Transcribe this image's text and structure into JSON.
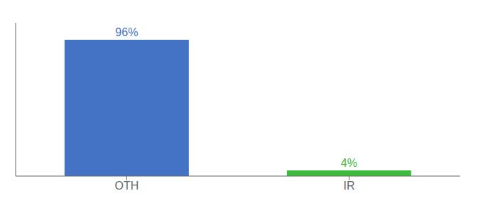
{
  "chart_data": {
    "type": "bar",
    "categories": [
      "OTH",
      "IR"
    ],
    "values": [
      96,
      4
    ],
    "value_labels": [
      "96%",
      "4%"
    ],
    "colors": [
      "#4472c4",
      "#3dbb3d"
    ],
    "ylim": [
      0,
      108
    ],
    "data_labels": true,
    "tick_labels": "x",
    "grid": false
  }
}
